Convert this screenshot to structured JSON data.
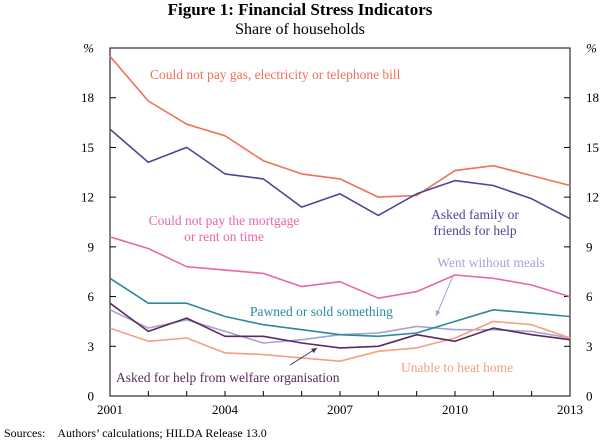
{
  "title": "Figure 1: Financial Stress Indicators",
  "subtitle": "Share of households",
  "source": "Sources:    Authors’ calculations; HILDA Release 13.0",
  "chart_data": {
    "type": "line",
    "title": "Figure 1: Financial Stress Indicators",
    "subtitle": "Share of households",
    "x": [
      2001,
      2002,
      2003,
      2004,
      2005,
      2006,
      2007,
      2008,
      2009,
      2010,
      2011,
      2012,
      2013
    ],
    "x_ticks": [
      "2001",
      "2004",
      "2007",
      "2010",
      "2013"
    ],
    "y_ticks": [
      "0",
      "3",
      "6",
      "9",
      "12",
      "15",
      "18"
    ],
    "ylim": [
      0,
      21
    ],
    "y_unit": "%",
    "series": [
      {
        "key": "gas",
        "name": "Could not pay gas, electricity or telephone bill",
        "color": "#f0705a",
        "values": [
          20.5,
          17.8,
          16.4,
          15.7,
          14.2,
          13.4,
          13.1,
          12.0,
          12.1,
          13.6,
          13.9,
          13.3,
          12.7
        ]
      },
      {
        "key": "family",
        "name": "Asked family or friends for help",
        "color": "#4e4596",
        "values": [
          16.1,
          14.1,
          15.0,
          13.4,
          13.1,
          11.4,
          12.2,
          10.9,
          12.2,
          13.0,
          12.7,
          11.9,
          10.7
        ]
      },
      {
        "key": "mortgage",
        "name": "Could not pay the mortgage or rent on time",
        "color": "#e966a8",
        "values": [
          9.6,
          8.9,
          7.8,
          7.6,
          7.4,
          6.6,
          6.9,
          5.9,
          6.3,
          7.3,
          7.1,
          6.7,
          6.0
        ]
      },
      {
        "key": "meals",
        "name": "Went without meals",
        "color": "#a3a4d2",
        "values": [
          5.2,
          4.1,
          4.6,
          3.9,
          3.2,
          3.4,
          3.7,
          3.8,
          4.2,
          4.0,
          4.0,
          3.9,
          3.5
        ]
      },
      {
        "key": "pawned",
        "name": "Pawned or sold something",
        "color": "#2a8a99",
        "values": [
          7.1,
          5.6,
          5.6,
          4.8,
          4.3,
          4.0,
          3.7,
          3.6,
          3.8,
          4.5,
          5.2,
          5.0,
          4.8
        ]
      },
      {
        "key": "heat",
        "name": "Unable to heat home",
        "color": "#f3a07e",
        "values": [
          4.1,
          3.3,
          3.5,
          2.6,
          2.5,
          2.3,
          2.1,
          2.7,
          2.9,
          3.5,
          4.5,
          4.3,
          3.5
        ]
      },
      {
        "key": "welfare",
        "name": "Asked for help from welfare organisation",
        "color": "#5a2b5e",
        "values": [
          5.6,
          3.9,
          4.7,
          3.6,
          3.6,
          3.2,
          2.9,
          3.0,
          3.7,
          3.3,
          4.1,
          3.7,
          3.4
        ]
      }
    ],
    "labels": {
      "gas": [
        "Could not pay gas, electricity or telephone bill"
      ],
      "family": [
        "Asked family or",
        "friends for help"
      ],
      "mortgage": [
        "Could not pay the mortgage",
        "or rent on time"
      ],
      "meals": [
        "Went without meals"
      ],
      "pawned": [
        "Pawned or sold something"
      ],
      "heat": [
        "Unable to heat home"
      ],
      "welfare": [
        "Asked for help from welfare organisation"
      ]
    }
  }
}
